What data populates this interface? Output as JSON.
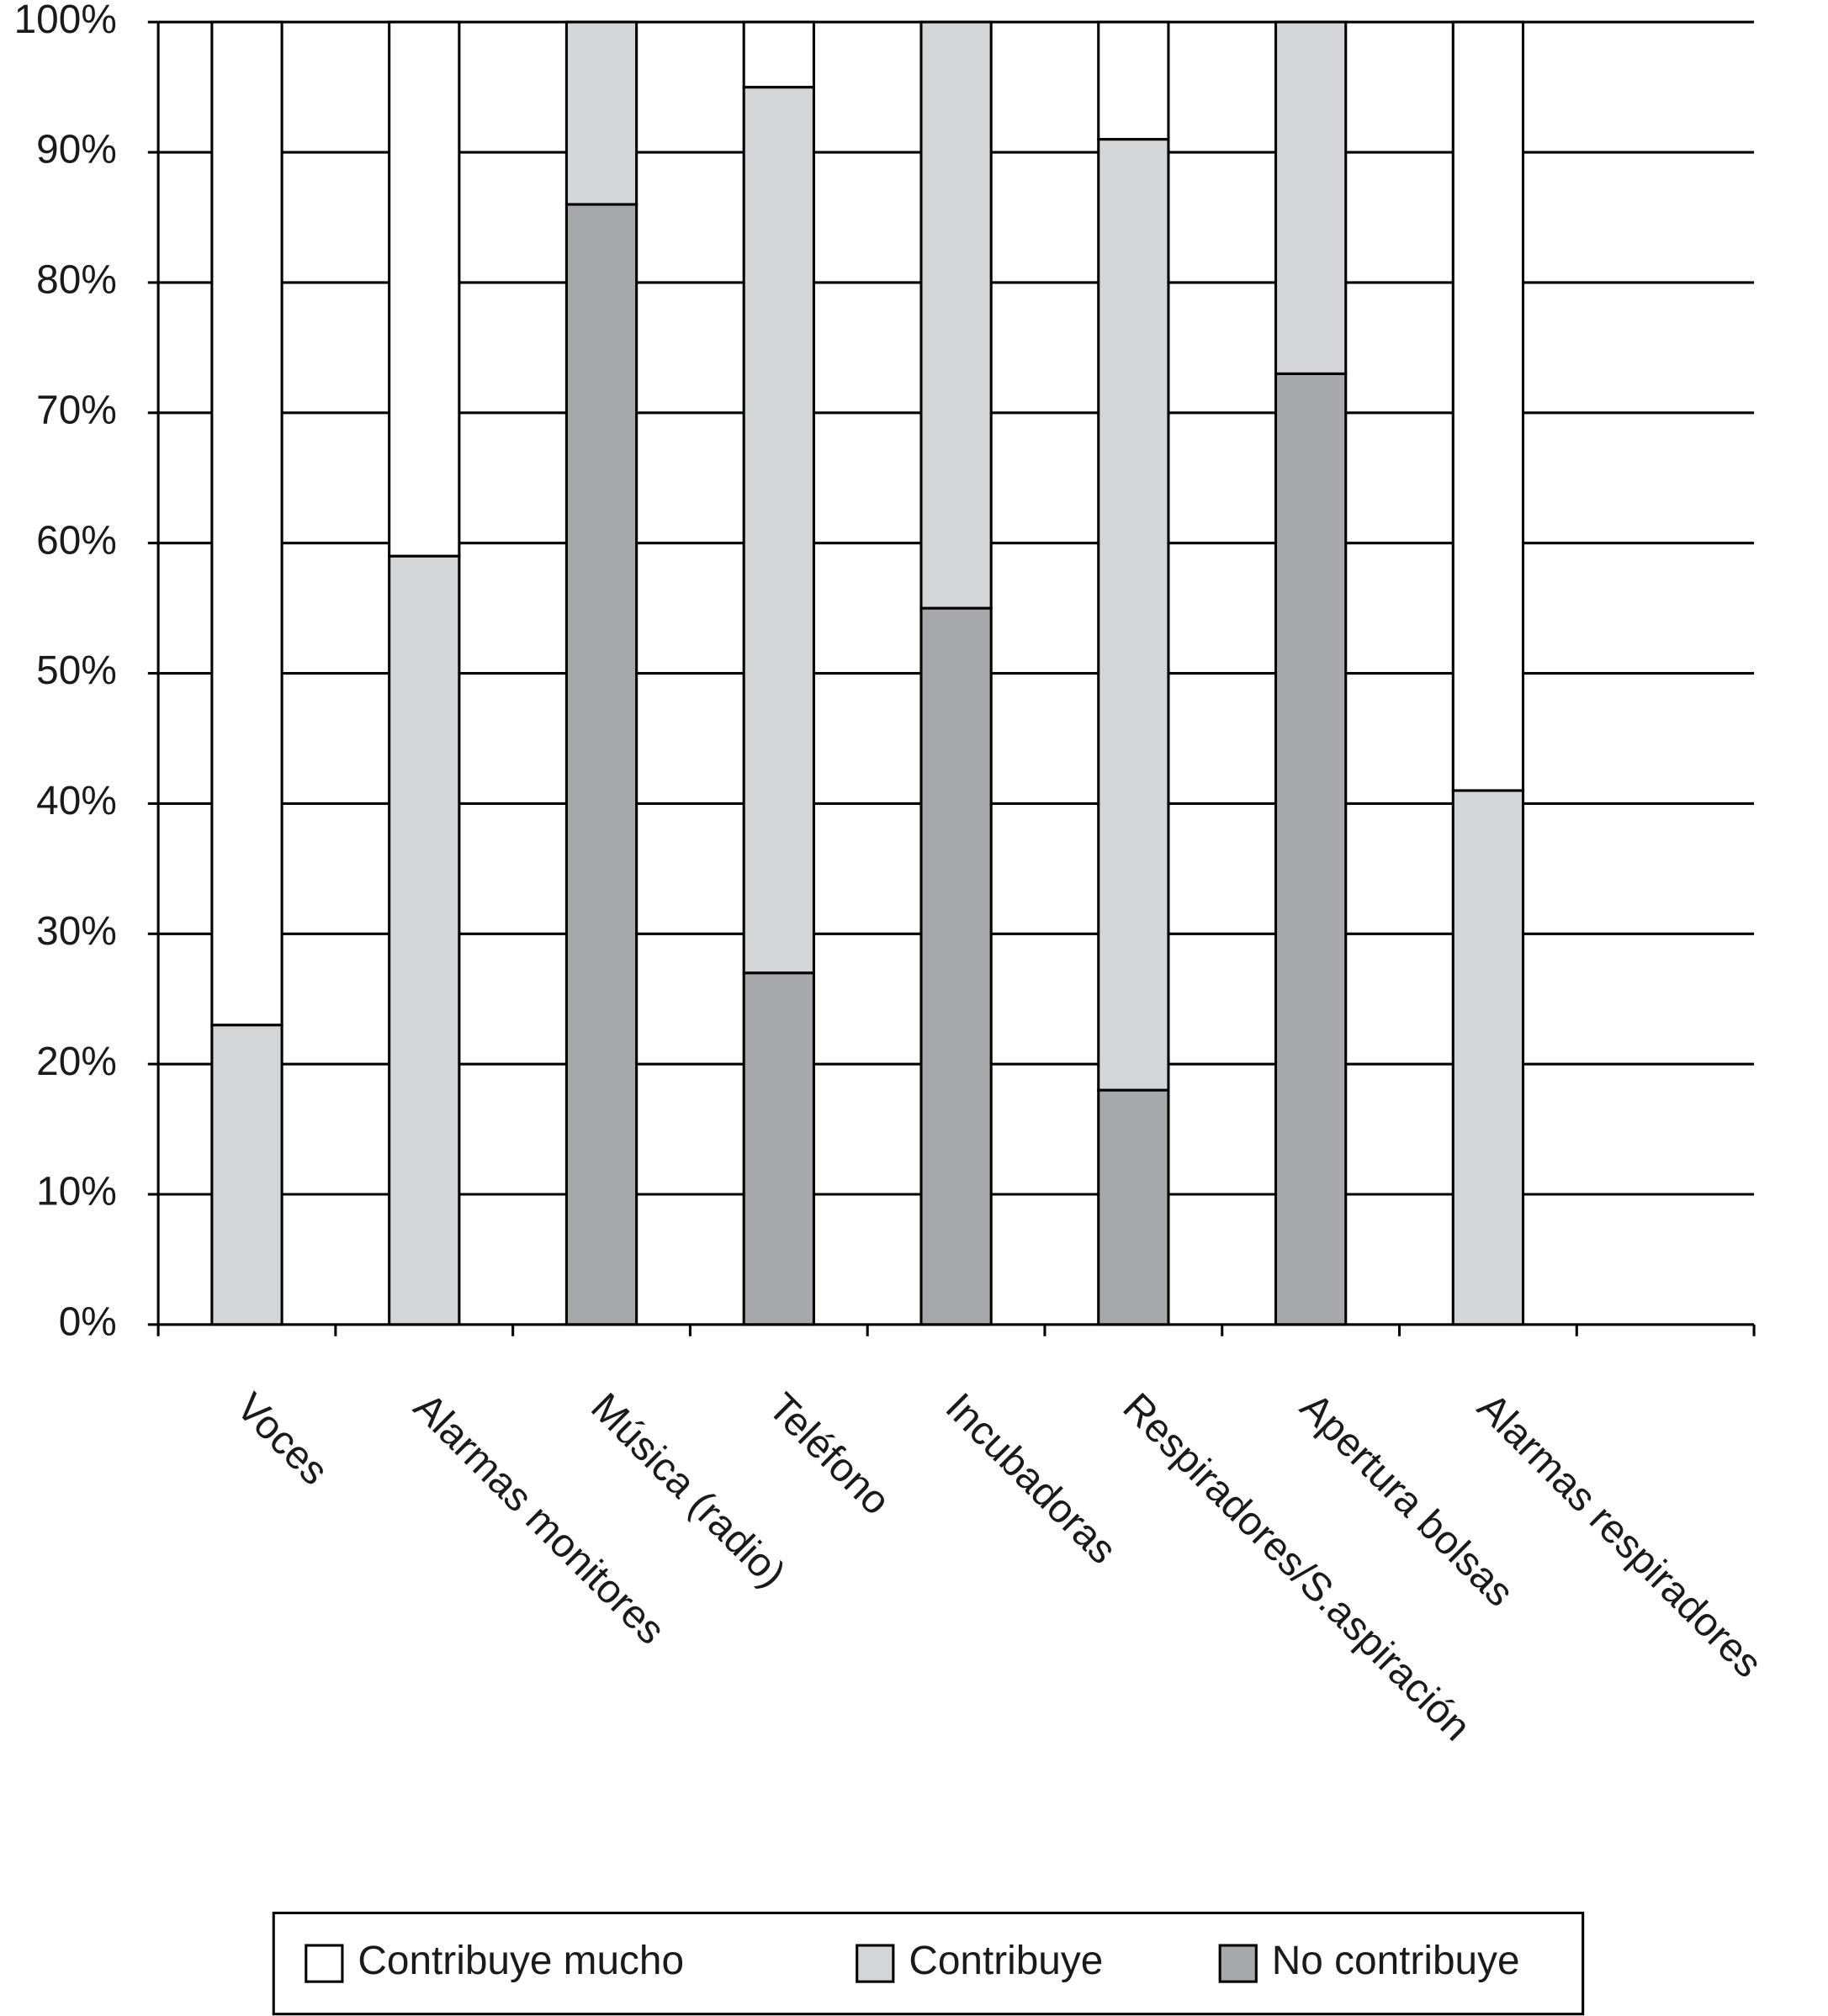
{
  "chart_data": {
    "type": "stacked_bar",
    "categories": [
      "Voces",
      "Alarmas monitores",
      "Música (radio)",
      "Teléfono",
      "Incubadoras",
      "Respiradores/S.aspiración",
      "Apertura bolsas",
      "Alarmas respiradores"
    ],
    "series": [
      {
        "name": "No contribuye",
        "color": "#a7a8ab",
        "values": [
          0,
          0,
          86,
          27,
          55,
          18,
          73,
          0
        ]
      },
      {
        "name": "Contribuye",
        "color": "#d4d5d7",
        "values": [
          23,
          59,
          14,
          68,
          45,
          73,
          27,
          41
        ]
      },
      {
        "name": "Contribuye mucho",
        "color": "#ffffff",
        "values": [
          77,
          41,
          0,
          5,
          0,
          9,
          0,
          59
        ]
      }
    ],
    "ylim": [
      0,
      100
    ],
    "yticks": [
      {
        "value": 0,
        "label": "0%"
      },
      {
        "value": 10,
        "label": "10%"
      },
      {
        "value": 20,
        "label": "20%"
      },
      {
        "value": 30,
        "label": "30%"
      },
      {
        "value": 40,
        "label": "40%"
      },
      {
        "value": 50,
        "label": "50%"
      },
      {
        "value": 60,
        "label": "60%"
      },
      {
        "value": 70,
        "label": "70%"
      },
      {
        "value": 80,
        "label": "80%"
      },
      {
        "value": 90,
        "label": "90%"
      },
      {
        "value": 100,
        "label": "100%"
      }
    ],
    "grid": true,
    "legend": "bottom"
  }
}
